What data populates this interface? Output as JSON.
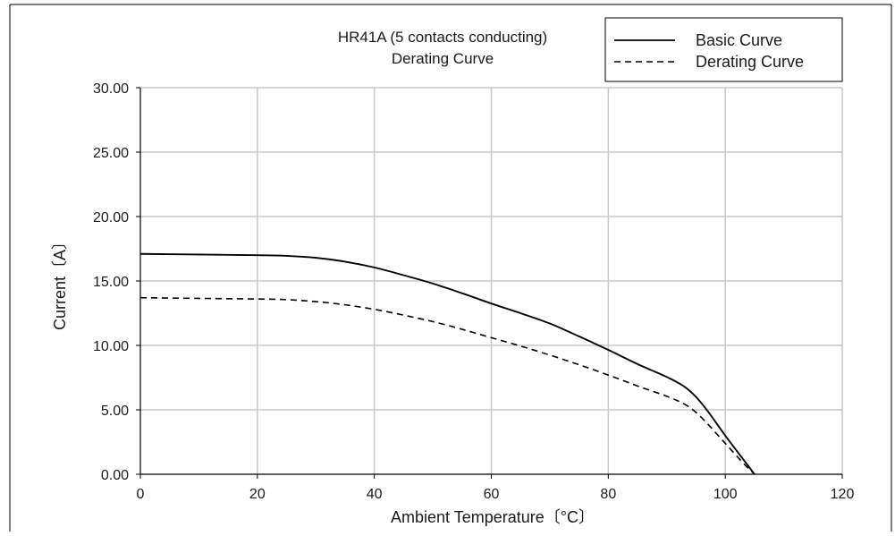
{
  "chart_data": {
    "type": "line",
    "title_lines": [
      "HR41A (5 contacts conducting)",
      "Derating Curve"
    ],
    "xlabel": "Ambient Temperature〔°C〕",
    "ylabel": "Current〔A〕",
    "xlim": [
      0,
      120
    ],
    "ylim": [
      0,
      30
    ],
    "x_ticks": [
      0,
      20,
      40,
      60,
      80,
      100,
      120
    ],
    "x_tick_labels": [
      "0",
      "20",
      "40",
      "60",
      "80",
      "100",
      "120"
    ],
    "y_ticks": [
      0,
      5,
      10,
      15,
      20,
      25,
      30
    ],
    "y_tick_labels": [
      "0.00",
      "5.00",
      "10.00",
      "15.00",
      "20.00",
      "25.00",
      "30.00"
    ],
    "grid": true,
    "legend_position": "top-right",
    "series": [
      {
        "name": "Basic Curve",
        "style": "solid",
        "color": "#000000",
        "x": [
          0,
          10,
          20,
          25,
          30,
          35,
          40,
          45,
          50,
          55,
          60,
          65,
          70,
          75,
          80,
          85,
          90,
          93,
          95,
          97,
          100,
          103,
          105
        ],
        "y": [
          17.1,
          17.05,
          17.0,
          16.95,
          16.8,
          16.5,
          16.05,
          15.45,
          14.8,
          14.05,
          13.25,
          12.5,
          11.7,
          10.7,
          9.65,
          8.55,
          7.55,
          6.8,
          6.0,
          4.9,
          3.0,
          1.2,
          0.0
        ]
      },
      {
        "name": "Derating Curve",
        "style": "dashed",
        "color": "#000000",
        "x": [
          0,
          10,
          20,
          25,
          30,
          35,
          40,
          45,
          50,
          55,
          60,
          65,
          70,
          75,
          80,
          85,
          90,
          93,
          95,
          97,
          100,
          103,
          105
        ],
        "y": [
          13.7,
          13.65,
          13.6,
          13.55,
          13.4,
          13.15,
          12.8,
          12.35,
          11.85,
          11.25,
          10.6,
          9.95,
          9.25,
          8.5,
          7.7,
          6.85,
          6.05,
          5.45,
          4.8,
          3.9,
          2.4,
          0.9,
          0.0
        ]
      }
    ]
  }
}
